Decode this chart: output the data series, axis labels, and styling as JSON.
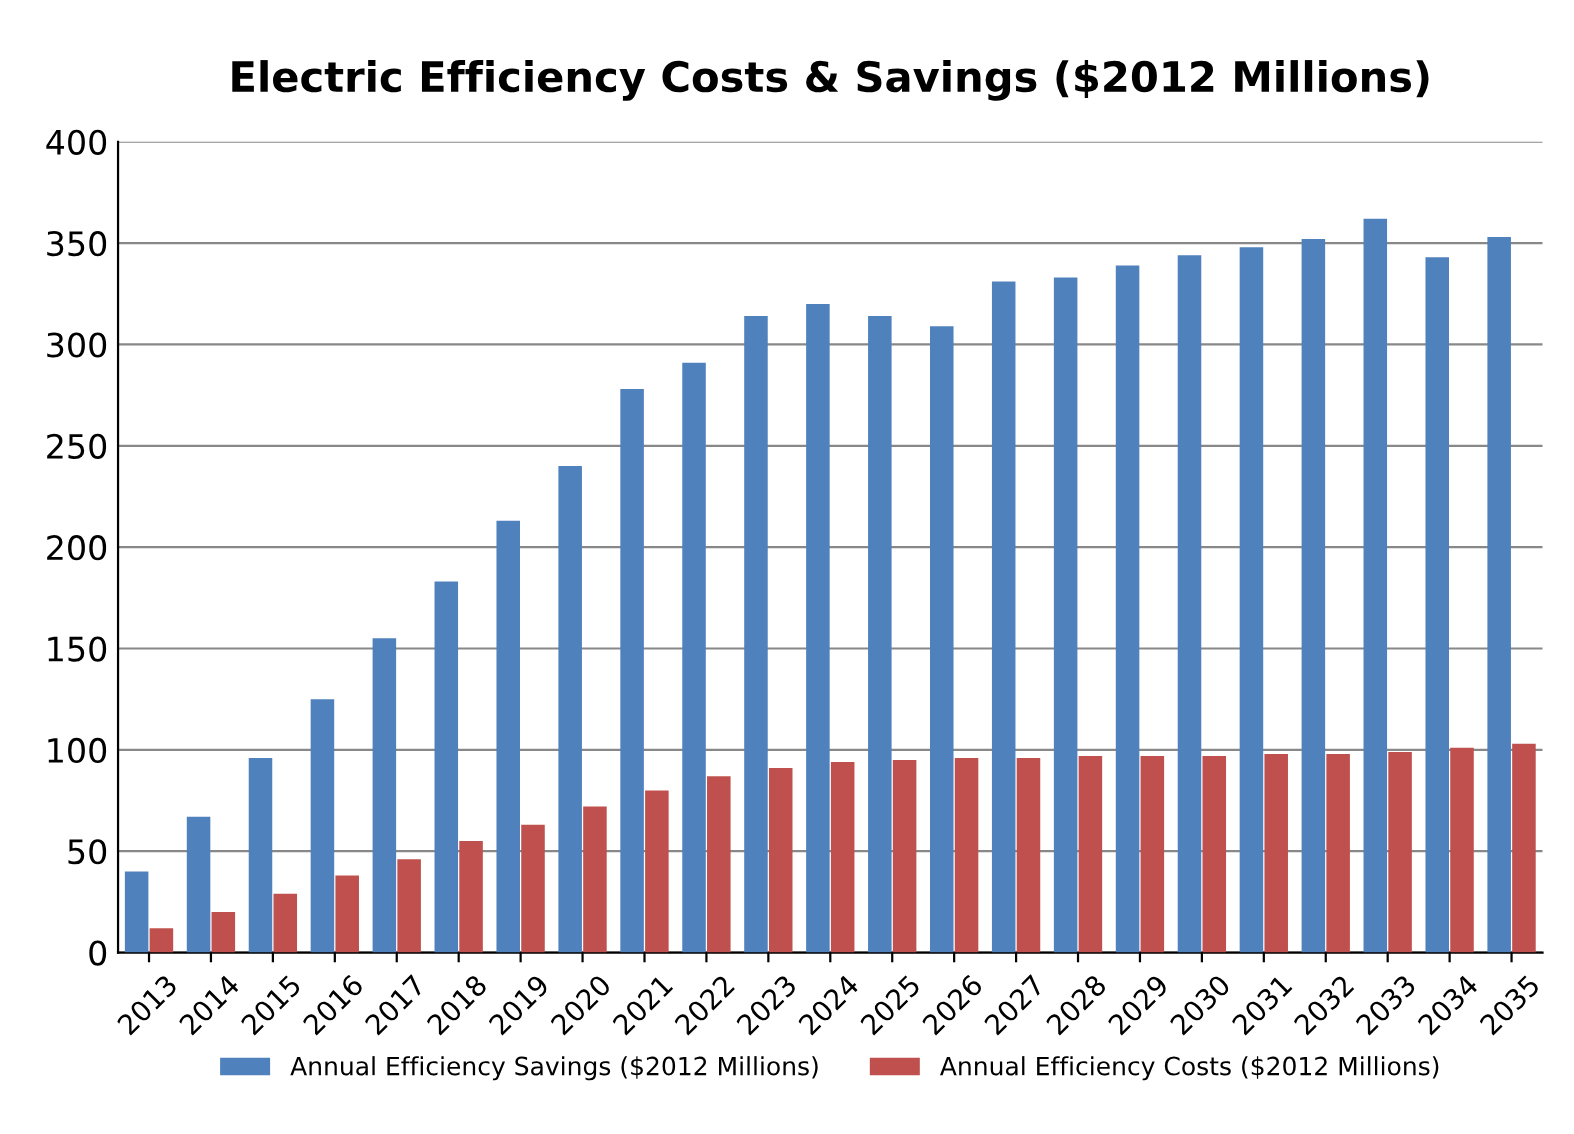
{
  "chart_data": {
    "type": "bar",
    "title": "Electric Efficiency Costs & Savings ($2012 Millions)",
    "categories": [
      "2013",
      "2014",
      "2015",
      "2016",
      "2017",
      "2018",
      "2019",
      "2020",
      "2021",
      "2022",
      "2023",
      "2024",
      "2025",
      "2026",
      "2027",
      "2028",
      "2029",
      "2030",
      "2031",
      "2032",
      "2033",
      "2034",
      "2035"
    ],
    "series": [
      {
        "name": "Annual Efficiency Savings ($2012 Millions)",
        "color": "#4f81bd",
        "values": [
          40,
          67,
          96,
          125,
          155,
          183,
          213,
          240,
          278,
          291,
          314,
          320,
          314,
          309,
          331,
          333,
          339,
          344,
          348,
          352,
          362,
          343,
          353
        ]
      },
      {
        "name": "Annual Efficiency Costs ($2012 Millions)",
        "color": "#c0504d",
        "values": [
          12,
          20,
          29,
          38,
          46,
          55,
          63,
          72,
          80,
          87,
          91,
          94,
          95,
          96,
          96,
          97,
          97,
          97,
          98,
          98,
          99,
          101,
          103
        ]
      }
    ],
    "ylim": [
      0,
      400
    ],
    "yticks": [
      0,
      50,
      100,
      150,
      200,
      250,
      300,
      350,
      400
    ],
    "grid": "y",
    "legend": "bottom"
  }
}
